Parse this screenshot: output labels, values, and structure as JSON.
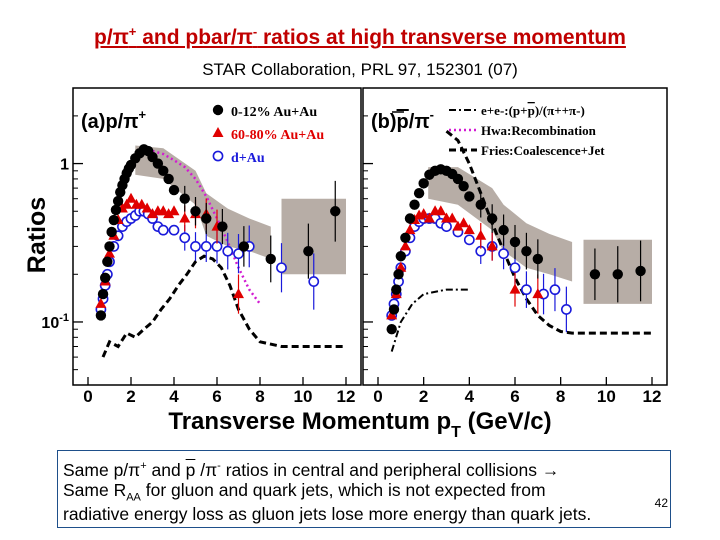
{
  "slide": {
    "title": {
      "pre": "p/π",
      "sup1": "+",
      "mid": " and pbar/π",
      "sup2": "-",
      "post": " ratios at high transverse momentum"
    },
    "citation": "STAR Collaboration, PRL 97, 152301 (07)",
    "page_number": "42",
    "caption": {
      "line1_a": "Same p/π",
      "line1_sup1": "+",
      "line1_b": " and ",
      "line1_pbar": "p",
      "line1_c": " /π",
      "line1_sup2": "-",
      "line1_d": " ratios in central and peripheral collisions →",
      "line2_a": "Same R",
      "line2_sub": "AA",
      "line2_b": " for gluon and quark jets, which is not expected from",
      "line3": "radiative energy loss as gluon jets lose more energy than quark jets."
    }
  },
  "colors": {
    "title": "#c00000",
    "central": "#000000",
    "peripheral": "#e00000",
    "dAu": "#1a1adb",
    "recomb": "#d21ad2",
    "band": "#b7ada6"
  },
  "chart_data": {
    "type": "scatter",
    "xlabel": "Transverse Momentum p",
    "xlabel_sub": "T",
    "xlabel_unit": " (GeV/c)",
    "ylabel": "Ratios",
    "yscale": "log",
    "ylim": [
      0.04,
      3
    ],
    "xlim": [
      0,
      12
    ],
    "y_ticks": [
      {
        "label": "1",
        "value": 1
      },
      {
        "label": "10",
        "sup": "-1",
        "value": 0.1
      }
    ],
    "panels": [
      {
        "label_text": "(a)p/π",
        "label_sup": "+",
        "x_ticks": [
          "0",
          "2",
          "4",
          "6",
          "8",
          "10",
          "12"
        ],
        "legend": [
          {
            "name": "0-12% Au+Au",
            "marker": "circle-filled"
          },
          {
            "name": "60-80% Au+Au",
            "marker": "triangle"
          },
          {
            "name": "d+Au",
            "marker": "circle-open"
          }
        ],
        "series": [
          {
            "name": "0-12% Au+Au",
            "x": [
              0.6,
              0.7,
              0.8,
              0.9,
              1.0,
              1.1,
              1.2,
              1.3,
              1.4,
              1.5,
              1.6,
              1.7,
              1.8,
              1.9,
              2.0,
              2.2,
              2.4,
              2.6,
              2.8,
              3.0,
              3.25,
              3.5,
              3.75,
              4.0,
              4.5,
              5.0,
              5.5,
              6.25,
              7.25,
              8.5,
              10.25,
              11.5
            ],
            "y": [
              0.11,
              0.15,
              0.19,
              0.24,
              0.3,
              0.37,
              0.44,
              0.51,
              0.58,
              0.66,
              0.73,
              0.8,
              0.87,
              0.93,
              0.98,
              1.08,
              1.16,
              1.23,
              1.2,
              1.1,
              1.0,
              0.9,
              0.8,
              0.68,
              0.6,
              0.5,
              0.45,
              0.4,
              0.3,
              0.25,
              0.28,
              0.5
            ]
          },
          {
            "name": "60-80% Au+Au",
            "x": [
              0.6,
              0.8,
              1.0,
              1.2,
              1.4,
              1.6,
              1.8,
              2.0,
              2.25,
              2.5,
              2.75,
              3.0,
              3.25,
              3.5,
              3.75,
              4.0,
              4.5,
              5.0,
              5.5,
              6.0,
              7.0
            ],
            "y": [
              0.13,
              0.18,
              0.27,
              0.35,
              0.44,
              0.52,
              0.55,
              0.6,
              0.55,
              0.55,
              0.52,
              0.48,
              0.5,
              0.5,
              0.48,
              0.5,
              0.45,
              0.48,
              0.48,
              0.4,
              0.15
            ]
          },
          {
            "name": "d+Au",
            "x": [
              0.6,
              0.7,
              0.8,
              0.9,
              1.0,
              1.2,
              1.4,
              1.6,
              1.8,
              2.0,
              2.2,
              2.4,
              2.6,
              2.8,
              3.0,
              3.25,
              3.5,
              4.0,
              4.5,
              5.0,
              5.5,
              6.0,
              6.5,
              7.0,
              7.5,
              9.0,
              10.5
            ],
            "y": [
              0.12,
              0.14,
              0.17,
              0.2,
              0.24,
              0.3,
              0.35,
              0.4,
              0.43,
              0.45,
              0.47,
              0.5,
              0.5,
              0.48,
              0.45,
              0.4,
              0.38,
              0.38,
              0.34,
              0.3,
              0.3,
              0.3,
              0.28,
              0.27,
              0.3,
              0.22,
              0.18
            ]
          }
        ],
        "curves": [
          {
            "name": "Fries:Coalescence+Jet",
            "style": "dashed-black",
            "x": [
              0.7,
              1.0,
              1.4,
              1.8,
              2.2,
              2.6,
              3.0,
              3.4,
              3.8,
              4.2,
              4.6,
              5.0,
              5.4,
              5.8,
              6.2,
              6.6,
              7.0,
              7.5,
              8.0,
              9.0,
              10.0,
              11.0,
              12.0
            ],
            "y": [
              0.06,
              0.075,
              0.07,
              0.085,
              0.08,
              0.09,
              0.1,
              0.12,
              0.14,
              0.17,
              0.2,
              0.24,
              0.26,
              0.25,
              0.22,
              0.17,
              0.12,
              0.09,
              0.075,
              0.07,
              0.07,
              0.07,
              0.07
            ]
          },
          {
            "name": "Hwa:Recombination",
            "style": "dotted-magenta",
            "x": [
              3.0,
              3.5,
              4.0,
              4.5,
              5.0,
              5.5,
              6.0,
              6.5,
              7.0,
              7.5,
              8.0
            ],
            "y": [
              1.2,
              1.15,
              1.05,
              0.95,
              0.8,
              0.62,
              0.45,
              0.32,
              0.22,
              0.16,
              0.13
            ]
          }
        ],
        "bands": [
          {
            "x": [
              2.2,
              3.5,
              5.0,
              5.5,
              6.5,
              7.5,
              8.5
            ],
            "low": [
              0.85,
              0.8,
              0.55,
              0.35,
              0.3,
              0.28,
              0.25
            ],
            "high": [
              1.3,
              1.25,
              0.9,
              0.65,
              0.52,
              0.45,
              0.4
            ]
          },
          {
            "x": [
              9.0,
              10.0,
              11.0,
              12.0
            ],
            "low": [
              0.2,
              0.2,
              0.2,
              0.2
            ],
            "high": [
              0.6,
              0.6,
              0.6,
              0.6
            ]
          }
        ]
      },
      {
        "label_text": "(b)",
        "label_pbar": "p",
        "label_rest": "/π",
        "label_sup": "-",
        "x_ticks": [
          "0",
          "2",
          "4",
          "6",
          "8",
          "10",
          "12"
        ],
        "legend": [
          {
            "name": "e+e-:(p+",
            "pbar": "p",
            "rest": ")/(π++π-)",
            "style": "dashdot-black"
          },
          {
            "name": "Hwa:Recombination",
            "style": "dotted-magenta"
          },
          {
            "name": "Fries:Coalescence+Jet",
            "style": "dashed-black"
          }
        ],
        "series": [
          {
            "name": "0-12% Au+Au",
            "x": [
              0.6,
              0.7,
              0.8,
              0.9,
              1.0,
              1.2,
              1.4,
              1.6,
              1.8,
              2.0,
              2.25,
              2.5,
              2.75,
              3.0,
              3.25,
              3.5,
              3.75,
              4.0,
              4.5,
              5.0,
              5.5,
              6.0,
              6.5,
              7.0,
              9.5,
              10.5,
              11.5
            ],
            "y": [
              0.09,
              0.12,
              0.16,
              0.2,
              0.26,
              0.34,
              0.45,
              0.55,
              0.65,
              0.75,
              0.85,
              0.9,
              0.92,
              0.9,
              0.86,
              0.8,
              0.72,
              0.62,
              0.55,
              0.45,
              0.38,
              0.32,
              0.28,
              0.25,
              0.2,
              0.2,
              0.21
            ]
          },
          {
            "name": "60-80% Au+Au",
            "x": [
              0.6,
              0.8,
              1.0,
              1.2,
              1.4,
              1.6,
              1.8,
              2.0,
              2.25,
              2.5,
              2.75,
              3.0,
              3.25,
              3.5,
              3.75,
              4.0,
              4.5,
              5.0,
              6.0,
              7.0
            ],
            "y": [
              0.11,
              0.15,
              0.22,
              0.3,
              0.38,
              0.44,
              0.47,
              0.48,
              0.45,
              0.5,
              0.5,
              0.45,
              0.45,
              0.4,
              0.42,
              0.38,
              0.35,
              0.3,
              0.16,
              0.15
            ]
          },
          {
            "name": "d+Au",
            "x": [
              0.6,
              0.7,
              0.8,
              0.9,
              1.0,
              1.2,
              1.4,
              1.6,
              1.8,
              2.0,
              2.25,
              2.5,
              2.75,
              3.0,
              3.5,
              4.0,
              4.5,
              5.0,
              5.5,
              6.0,
              6.5,
              7.25,
              7.75,
              8.25
            ],
            "y": [
              0.11,
              0.13,
              0.15,
              0.18,
              0.22,
              0.28,
              0.34,
              0.4,
              0.43,
              0.45,
              0.45,
              0.45,
              0.42,
              0.4,
              0.37,
              0.33,
              0.28,
              0.3,
              0.27,
              0.22,
              0.16,
              0.15,
              0.16,
              0.12
            ]
          }
        ],
        "curves": [
          {
            "name": "Fries:Coalescence+Jet",
            "style": "dashed-black",
            "x": [
              3.0,
              3.5,
              4.0,
              4.5,
              5.0,
              5.5,
              6.0,
              6.5,
              7.0,
              7.5,
              8.0,
              8.5,
              9.0,
              10.0,
              11.0,
              12.0
            ],
            "y": [
              1.6,
              1.4,
              1.0,
              0.65,
              0.42,
              0.28,
              0.19,
              0.14,
              0.11,
              0.095,
              0.087,
              0.085,
              0.085,
              0.085,
              0.085,
              0.085
            ]
          },
          {
            "name": "e+e-:(p+pbar)/(π++π-)",
            "style": "dashdot-black",
            "x": [
              0.6,
              1.0,
              1.5,
              2.0,
              3.0,
              4.0
            ],
            "y": [
              0.065,
              0.1,
              0.13,
              0.15,
              0.16,
              0.16
            ]
          }
        ],
        "bands": [
          {
            "x": [
              2.2,
              3.5,
              5.0,
              5.5,
              6.5,
              7.5,
              8.5
            ],
            "low": [
              0.6,
              0.55,
              0.38,
              0.28,
              0.22,
              0.2,
              0.18
            ],
            "high": [
              0.95,
              0.95,
              0.7,
              0.55,
              0.42,
              0.36,
              0.32
            ]
          },
          {
            "x": [
              9.0,
              10.0,
              11.0,
              12.0
            ],
            "low": [
              0.13,
              0.13,
              0.13,
              0.13
            ],
            "high": [
              0.33,
              0.33,
              0.33,
              0.33
            ]
          }
        ]
      }
    ]
  }
}
